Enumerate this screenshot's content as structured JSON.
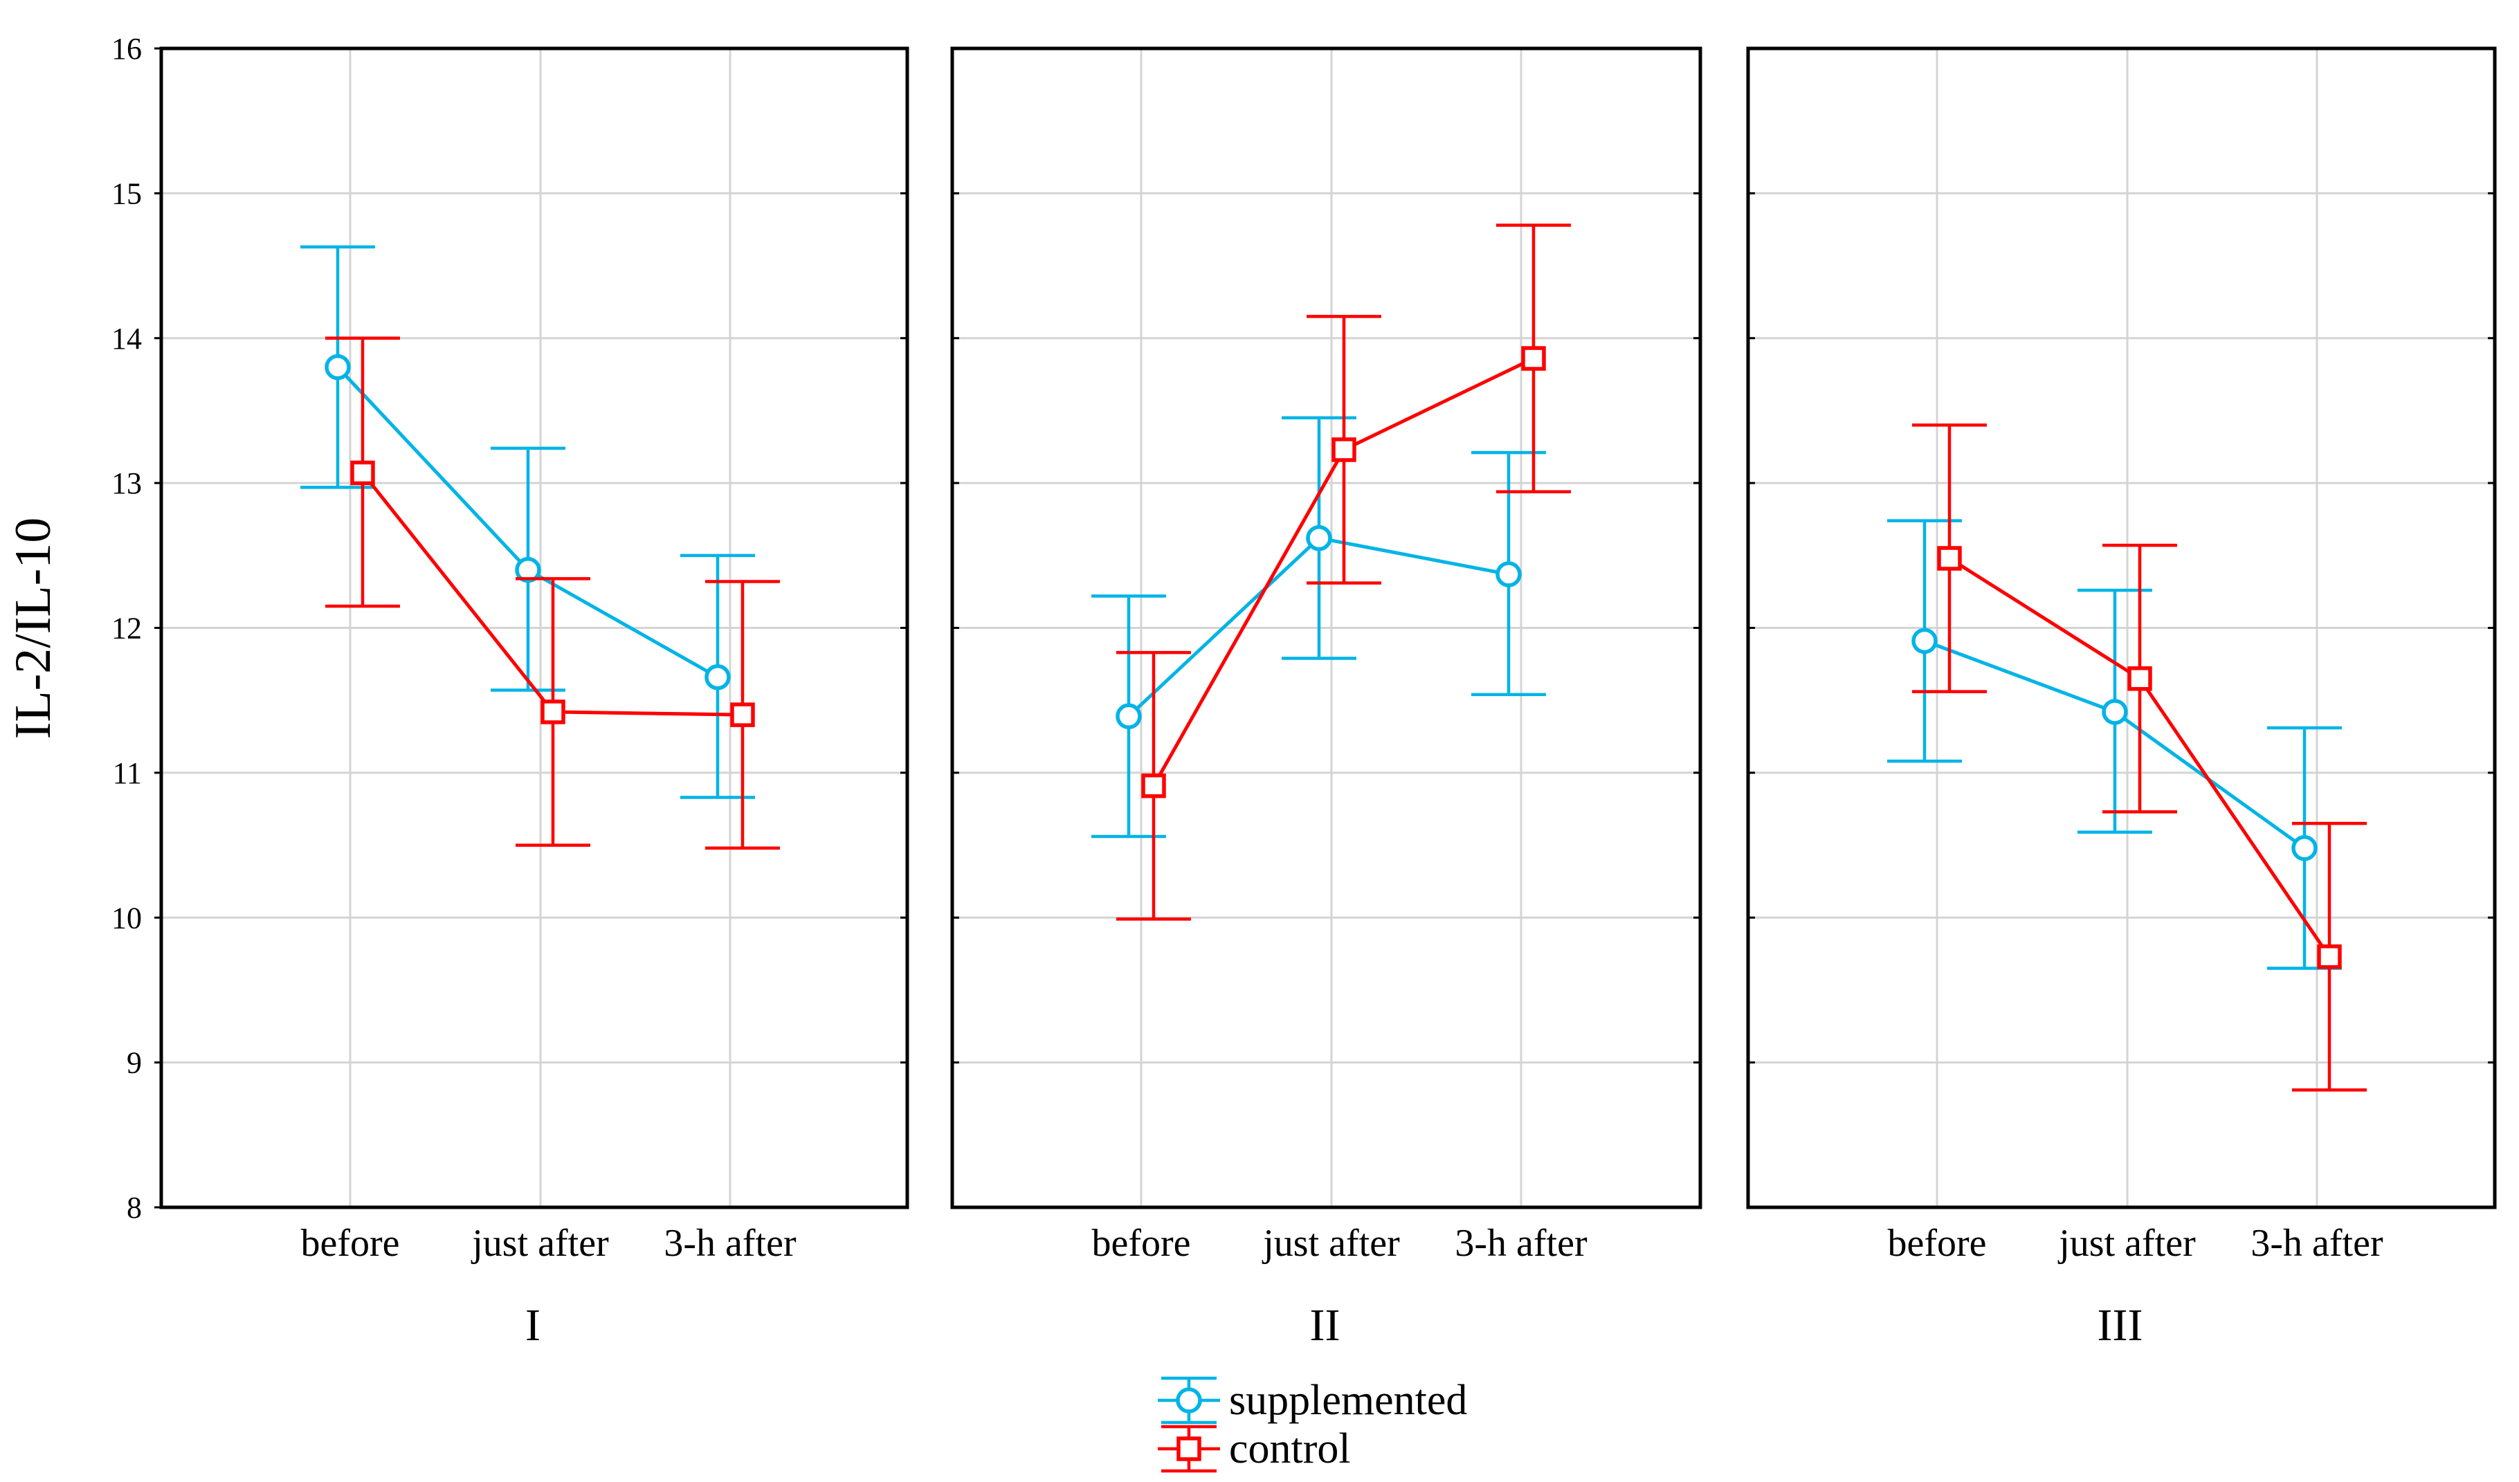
{
  "chart_data": {
    "type": "line",
    "ylabel": "IL-2/IL-10",
    "ylim": [
      8,
      16
    ],
    "yticks": [
      8,
      9,
      10,
      11,
      12,
      13,
      14,
      15,
      16
    ],
    "categories": [
      "before",
      "just after",
      "3-h after"
    ],
    "grid": true,
    "legend_position": "bottom-center",
    "colors": {
      "supplemented": "#00b4e6",
      "control": "#ff0000"
    },
    "panels": [
      {
        "label": "I",
        "series": [
          {
            "name": "supplemented",
            "marker": "circle",
            "values": [
              13.8,
              12.4,
              11.66
            ],
            "lower": [
              12.97,
              11.57,
              10.83
            ],
            "upper": [
              14.63,
              13.24,
              12.5
            ]
          },
          {
            "name": "control",
            "marker": "square",
            "values": [
              13.07,
              11.42,
              11.4
            ],
            "lower": [
              12.15,
              10.5,
              10.48
            ],
            "upper": [
              14.0,
              12.34,
              12.32
            ]
          }
        ]
      },
      {
        "label": "II",
        "series": [
          {
            "name": "supplemented",
            "marker": "circle",
            "values": [
              11.39,
              12.62,
              12.37
            ],
            "lower": [
              10.56,
              11.79,
              11.54
            ],
            "upper": [
              12.22,
              13.45,
              13.21
            ]
          },
          {
            "name": "control",
            "marker": "square",
            "values": [
              10.91,
              13.23,
              13.86
            ],
            "lower": [
              9.99,
              12.31,
              12.94
            ],
            "upper": [
              11.83,
              14.15,
              14.78
            ]
          }
        ]
      },
      {
        "label": "III",
        "series": [
          {
            "name": "supplemented",
            "marker": "circle",
            "values": [
              11.91,
              11.42,
              10.48
            ],
            "lower": [
              11.08,
              10.59,
              9.65
            ],
            "upper": [
              12.74,
              12.26,
              11.31
            ]
          },
          {
            "name": "control",
            "marker": "square",
            "values": [
              12.48,
              11.65,
              9.73
            ],
            "lower": [
              11.56,
              10.73,
              8.81
            ],
            "upper": [
              13.4,
              12.57,
              10.65
            ]
          }
        ]
      }
    ],
    "legend": [
      {
        "name": "supplemented",
        "label": "supplemented",
        "marker": "circle"
      },
      {
        "name": "control",
        "label": "control",
        "marker": "square"
      }
    ]
  }
}
